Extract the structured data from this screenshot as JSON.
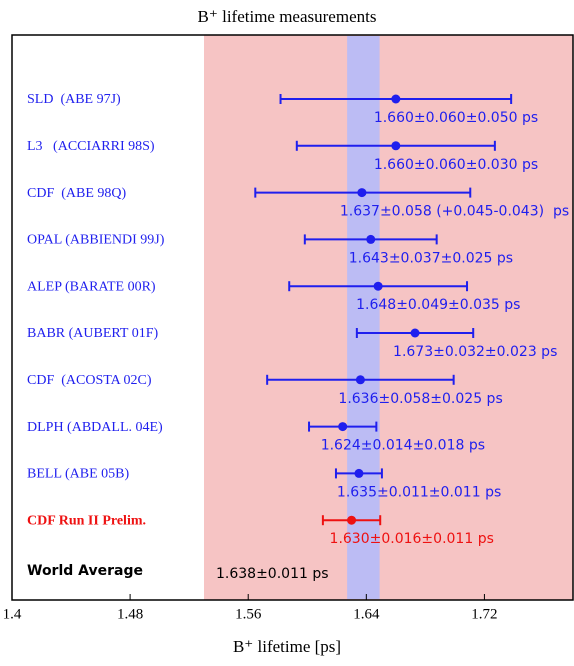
{
  "chart_data": {
    "type": "forest",
    "title": "B⁺ lifetime measurements",
    "x_label": "B⁺ lifetime [ps]",
    "xlim": [
      1.4,
      1.78
    ],
    "xticks": [
      1.4,
      1.48,
      1.56,
      1.64,
      1.72
    ],
    "measurements": [
      {
        "label": "SLD  (ABE 97J)",
        "value": 1.66,
        "stat": 0.06,
        "syst_plus": 0.05,
        "syst_minus": 0.05,
        "value_label": "1.660±0.060±0.050 ps",
        "color": "#1f1fee"
      },
      {
        "label": "L3   (ACCIARRI 98S)",
        "value": 1.66,
        "stat": 0.06,
        "syst_plus": 0.03,
        "syst_minus": 0.03,
        "value_label": "1.660±0.060±0.030 ps",
        "color": "#1f1fee"
      },
      {
        "label": "CDF  (ABE 98Q)",
        "value": 1.637,
        "stat": 0.058,
        "syst_plus": 0.045,
        "syst_minus": 0.043,
        "value_label": "1.637±0.058 (+0.045-0.043)  ps",
        "color": "#1f1fee"
      },
      {
        "label": "OPAL (ABBIENDI 99J)",
        "value": 1.643,
        "stat": 0.037,
        "syst_plus": 0.025,
        "syst_minus": 0.025,
        "value_label": "1.643±0.037±0.025 ps",
        "color": "#1f1fee"
      },
      {
        "label": "ALEP (BARATE 00R)",
        "value": 1.648,
        "stat": 0.049,
        "syst_plus": 0.035,
        "syst_minus": 0.035,
        "value_label": "1.648±0.049±0.035 ps",
        "color": "#1f1fee"
      },
      {
        "label": "BABR (AUBERT 01F)",
        "value": 1.673,
        "stat": 0.032,
        "syst_plus": 0.023,
        "syst_minus": 0.023,
        "value_label": "1.673±0.032±0.023 ps",
        "color": "#1f1fee"
      },
      {
        "label": "CDF  (ACOSTA 02C)",
        "value": 1.636,
        "stat": 0.058,
        "syst_plus": 0.025,
        "syst_minus": 0.025,
        "value_label": "1.636±0.058±0.025 ps",
        "color": "#1f1fee"
      },
      {
        "label": "DLPH (ABDALL. 04E)",
        "value": 1.624,
        "stat": 0.014,
        "syst_plus": 0.018,
        "syst_minus": 0.018,
        "value_label": "1.624±0.014±0.018 ps",
        "color": "#1f1fee"
      },
      {
        "label": "BELL (ABE 05B)",
        "value": 1.635,
        "stat": 0.011,
        "syst_plus": 0.011,
        "syst_minus": 0.011,
        "value_label": "1.635±0.011±0.011 ps",
        "color": "#1f1fee"
      },
      {
        "label": "CDF Run II Prelim.",
        "value": 1.63,
        "stat": 0.016,
        "syst_plus": 0.011,
        "syst_minus": 0.011,
        "value_label": "1.630±0.016±0.011 ps",
        "color": "#ee1111"
      }
    ],
    "world_average": {
      "label": "World Average",
      "value": 1.638,
      "error": 0.011,
      "value_label": "1.638±0.011 ps",
      "color": "#bcbcf4"
    }
  }
}
